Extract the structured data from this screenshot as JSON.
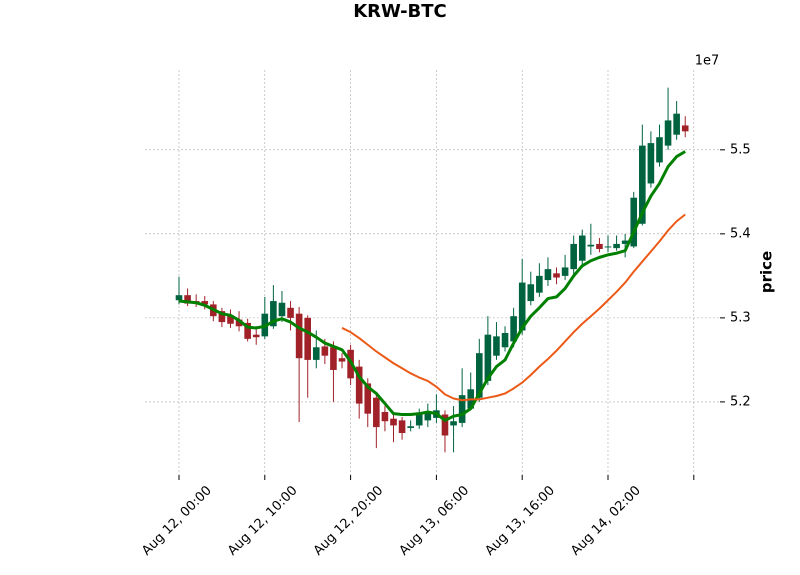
{
  "chart_data": {
    "type": "candlestick",
    "title": "KRW-BTC",
    "ylabel": "price",
    "y_offset_label": "1e7",
    "categories": [
      "Aug 12, 00:00",
      null,
      null,
      null,
      null,
      null,
      null,
      null,
      null,
      null,
      "Aug 12, 10:00",
      null,
      null,
      null,
      null,
      null,
      null,
      null,
      null,
      null,
      "Aug 12, 20:00",
      null,
      null,
      null,
      null,
      null,
      null,
      null,
      null,
      null,
      "Aug 13, 06:00",
      null,
      null,
      null,
      null,
      null,
      null,
      null,
      null,
      null,
      "Aug 13, 16:00",
      null,
      null,
      null,
      null,
      null,
      null,
      null,
      null,
      null,
      "Aug 14, 02:00",
      null,
      null,
      null,
      null,
      null,
      null,
      null,
      null,
      null
    ],
    "open": [
      5.321,
      5.327,
      5.32,
      5.32,
      5.316,
      5.308,
      5.303,
      5.298,
      5.294,
      5.28,
      5.278,
      5.29,
      5.302,
      5.312,
      5.305,
      5.3,
      5.25,
      5.266,
      5.265,
      5.252,
      5.262,
      5.242,
      5.222,
      5.205,
      5.188,
      5.18,
      5.178,
      5.169,
      5.172,
      5.178,
      5.181,
      5.185,
      5.172,
      5.175,
      5.192,
      5.205,
      5.225,
      5.255,
      5.265,
      5.272,
      5.285,
      5.32,
      5.33,
      5.345,
      5.353,
      5.35,
      5.358,
      5.368,
      5.385,
      5.388,
      5.384,
      5.383,
      5.388,
      5.385,
      5.412,
      5.46,
      5.485,
      5.505,
      5.518,
      5.529
    ],
    "high": [
      5.349,
      5.335,
      5.328,
      5.326,
      5.32,
      5.312,
      5.31,
      5.308,
      5.299,
      5.29,
      5.325,
      5.339,
      5.332,
      5.32,
      5.313,
      5.303,
      5.285,
      5.275,
      5.272,
      5.258,
      5.268,
      5.25,
      5.228,
      5.212,
      5.195,
      5.185,
      5.182,
      5.178,
      5.192,
      5.198,
      5.209,
      5.19,
      5.195,
      5.24,
      5.235,
      5.275,
      5.302,
      5.295,
      5.29,
      5.312,
      5.37,
      5.355,
      5.365,
      5.372,
      5.36,
      5.375,
      5.398,
      5.405,
      5.412,
      5.395,
      5.398,
      5.398,
      5.4,
      5.45,
      5.53,
      5.522,
      5.53,
      5.574,
      5.558,
      5.54
    ],
    "low": [
      5.316,
      5.314,
      5.313,
      5.31,
      5.296,
      5.289,
      5.288,
      5.284,
      5.272,
      5.268,
      5.275,
      5.287,
      5.295,
      5.285,
      5.176,
      5.205,
      5.24,
      5.245,
      5.2,
      5.24,
      5.22,
      5.18,
      5.17,
      5.145,
      5.165,
      5.152,
      5.155,
      5.165,
      5.168,
      5.17,
      5.175,
      5.14,
      5.14,
      5.17,
      5.19,
      5.2,
      5.22,
      5.25,
      5.26,
      5.265,
      5.28,
      5.315,
      5.325,
      5.338,
      5.34,
      5.345,
      5.352,
      5.36,
      5.375,
      5.378,
      5.378,
      5.38,
      5.372,
      5.383,
      5.41,
      5.455,
      5.48,
      5.5,
      5.512,
      5.515
    ],
    "close": [
      5.327,
      5.317,
      5.318,
      5.316,
      5.302,
      5.295,
      5.293,
      5.29,
      5.275,
      5.277,
      5.305,
      5.32,
      5.318,
      5.3,
      5.252,
      5.25,
      5.265,
      5.255,
      5.238,
      5.248,
      5.228,
      5.198,
      5.186,
      5.17,
      5.177,
      5.172,
      5.163,
      5.171,
      5.185,
      5.188,
      5.19,
      5.16,
      5.177,
      5.208,
      5.215,
      5.258,
      5.28,
      5.278,
      5.282,
      5.302,
      5.342,
      5.34,
      5.35,
      5.358,
      5.348,
      5.36,
      5.388,
      5.398,
      5.387,
      5.382,
      5.385,
      5.388,
      5.392,
      5.443,
      5.505,
      5.508,
      5.515,
      5.535,
      5.543,
      5.522
    ],
    "up_color": "#006340",
    "down_color": "#a02128",
    "series": [
      {
        "color": "#008000",
        "width": 3,
        "values": [
          5.32,
          5.319,
          5.318,
          5.315,
          5.31,
          5.305,
          5.303,
          5.297,
          5.289,
          5.288,
          5.29,
          5.296,
          5.299,
          5.295,
          5.288,
          5.283,
          5.277,
          5.27,
          5.266,
          5.262,
          5.248,
          5.23,
          5.218,
          5.21,
          5.198,
          5.186,
          5.185,
          5.185,
          5.186,
          5.188,
          5.186,
          5.178,
          5.183,
          5.185,
          5.192,
          5.21,
          5.228,
          5.242,
          5.25,
          5.27,
          5.288,
          5.302,
          5.312,
          5.323,
          5.325,
          5.335,
          5.35,
          5.362,
          5.368,
          5.372,
          5.375,
          5.377,
          5.38,
          5.402,
          5.425,
          5.445,
          5.46,
          5.48,
          5.492,
          5.498
        ]
      },
      {
        "color": "#ec5a17",
        "width": 2,
        "values": [
          null,
          null,
          null,
          null,
          null,
          null,
          null,
          null,
          null,
          null,
          null,
          null,
          null,
          null,
          null,
          null,
          null,
          null,
          null,
          5.288,
          5.283,
          5.276,
          5.268,
          5.26,
          5.253,
          5.246,
          5.24,
          5.234,
          5.229,
          5.225,
          5.218,
          5.209,
          5.204,
          5.202,
          5.203,
          5.203,
          5.205,
          5.207,
          5.21,
          5.216,
          5.223,
          5.232,
          5.242,
          5.251,
          5.261,
          5.272,
          5.283,
          5.293,
          5.302,
          5.311,
          5.321,
          5.331,
          5.342,
          5.355,
          5.367,
          5.379,
          5.391,
          5.404,
          5.415,
          5.423
        ]
      }
    ],
    "ylim": [
      5.113,
      5.595
    ],
    "yticks": [
      5.2,
      5.3,
      5.4,
      5.5
    ],
    "grid": true
  }
}
